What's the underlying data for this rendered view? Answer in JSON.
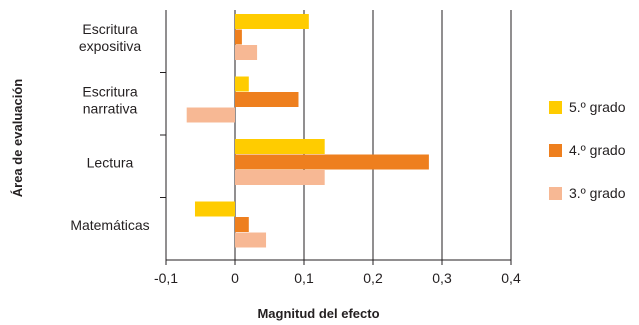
{
  "chart_data": {
    "type": "bar",
    "orientation": "horizontal",
    "categories": [
      [
        "Escritura",
        "expositiva"
      ],
      [
        "Escritura",
        "narrativa"
      ],
      [
        "Lectura"
      ],
      [
        "Matemáticas"
      ]
    ],
    "series": [
      {
        "name": "5.º grado",
        "color": "#ffcc00",
        "values": [
          0.107,
          0.02,
          0.13,
          -0.058
        ]
      },
      {
        "name": "4.º grado",
        "color": "#ee7f1e",
        "values": [
          0.01,
          0.092,
          0.281,
          0.02
        ]
      },
      {
        "name": "3.º grado",
        "color": "#f7b894",
        "values": [
          0.032,
          -0.07,
          0.13,
          0.045
        ]
      }
    ],
    "xlabel": "Magnitud del efecto",
    "ylabel": "Área de evaluación",
    "xlim": [
      -0.1,
      0.4
    ],
    "xticks": [
      -0.1,
      0,
      0.1,
      0.2,
      0.3,
      0.4
    ],
    "xtick_labels": [
      "-0,1",
      "0",
      "0,1",
      "0,2",
      "0,3",
      "0,4"
    ],
    "grid": "vertical",
    "legend_position": "right"
  }
}
